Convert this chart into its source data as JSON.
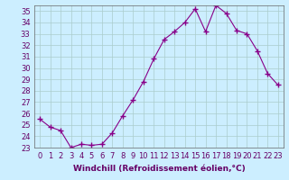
{
  "x": [
    0,
    1,
    2,
    3,
    4,
    5,
    6,
    7,
    8,
    9,
    10,
    11,
    12,
    13,
    14,
    15,
    16,
    17,
    18,
    19,
    20,
    21,
    22,
    23
  ],
  "y": [
    25.5,
    24.8,
    24.5,
    23.0,
    23.3,
    23.2,
    23.3,
    24.3,
    25.8,
    27.2,
    28.8,
    30.8,
    32.5,
    33.2,
    34.0,
    35.2,
    33.2,
    35.5,
    34.8,
    33.3,
    33.0,
    31.5,
    29.5,
    28.5
  ],
  "line_color": "#880088",
  "marker": "+",
  "bg_color": "#cceeff",
  "grid_color": "#aacccc",
  "xlabel": "Windchill (Refroidissement éolien,°C)",
  "ylim": [
    23,
    35.5
  ],
  "yticks": [
    23,
    24,
    25,
    26,
    27,
    28,
    29,
    30,
    31,
    32,
    33,
    34,
    35
  ],
  "xticks": [
    0,
    1,
    2,
    3,
    4,
    5,
    6,
    7,
    8,
    9,
    10,
    11,
    12,
    13,
    14,
    15,
    16,
    17,
    18,
    19,
    20,
    21,
    22,
    23
  ],
  "xlabel_fontsize": 6.5,
  "tick_fontsize": 6,
  "axis_color": "#660066",
  "spine_color": "#666666"
}
